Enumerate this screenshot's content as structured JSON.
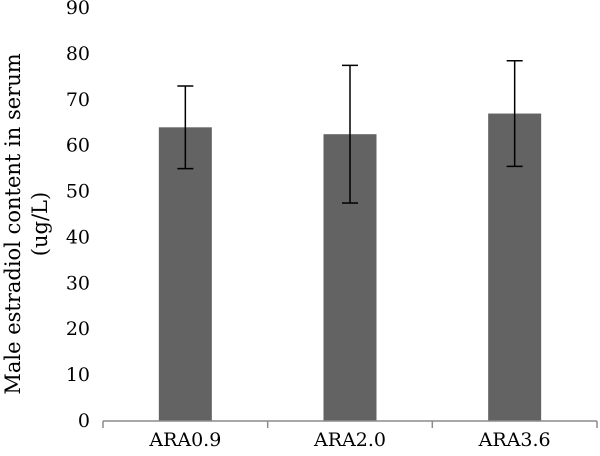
{
  "chart_data": {
    "type": "bar",
    "title": "",
    "xlabel": "",
    "ylabel": [
      "Male estradiol content in serum",
      "(ug/L)"
    ],
    "categories": [
      "ARA0.9",
      "ARA2.0",
      "ARA3.6"
    ],
    "series": [
      {
        "values": [
          64,
          62.5,
          67
        ],
        "error": [
          9,
          15,
          11.5
        ],
        "color": "#636363"
      }
    ],
    "ylim": [
      0,
      90
    ],
    "yticks": [
      "0",
      "10",
      "20",
      "30",
      "40",
      "50",
      "60",
      "70",
      "80",
      "90"
    ],
    "grid": false,
    "legend": "none"
  }
}
